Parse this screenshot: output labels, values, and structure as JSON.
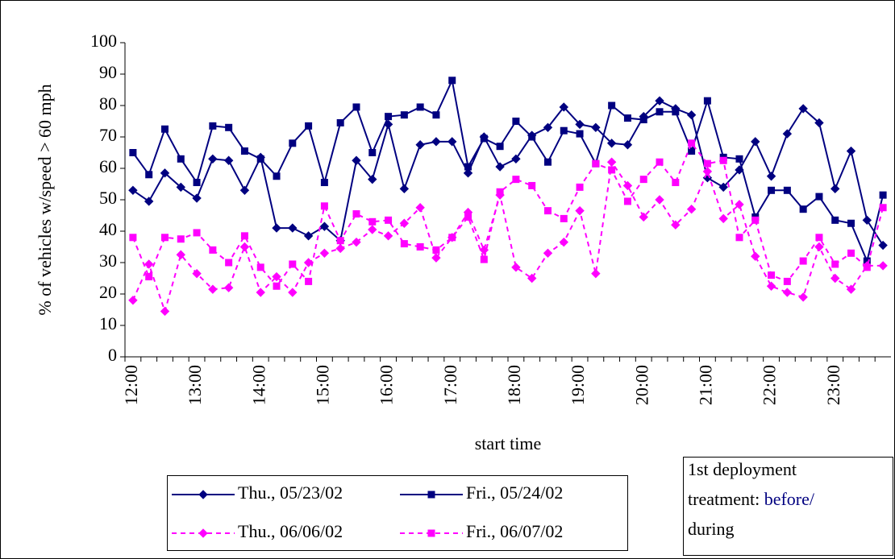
{
  "chart_data": {
    "type": "line",
    "y_label": "% of vehicles w/speed > 60 mph",
    "x_label": "start time",
    "categories": [
      "12:00",
      null,
      null,
      null,
      "13:00",
      null,
      null,
      null,
      "14:00",
      null,
      null,
      null,
      "15:00",
      null,
      null,
      null,
      "16:00",
      null,
      null,
      null,
      "17:00",
      null,
      null,
      null,
      "18:00",
      null,
      null,
      null,
      "19:00",
      null,
      null,
      null,
      "20:00",
      null,
      null,
      null,
      "21:00",
      null,
      null,
      null,
      "22:00",
      null,
      null,
      null,
      "23:00",
      null,
      null,
      null
    ],
    "ylim": [
      0,
      100
    ],
    "yticks": [
      0,
      10,
      20,
      30,
      40,
      50,
      60,
      70,
      80,
      90,
      100
    ],
    "grid": false,
    "series": [
      {
        "name": "Thu., 05/23/02",
        "color": "#000080",
        "style": "solid",
        "marker": "diamond",
        "values": [
          53,
          49.5,
          58.5,
          54,
          50.5,
          63,
          62.5,
          53,
          63.5,
          41,
          41,
          38.5,
          41.5,
          37,
          62.5,
          56.5,
          74,
          53.5,
          67.5,
          68.5,
          68.5,
          58.5,
          70,
          60.5,
          63,
          70.5,
          73,
          79.5,
          74,
          73,
          68,
          67.5,
          76.5,
          81.5,
          79,
          77,
          57,
          54,
          59.5,
          68.5,
          57.5,
          71,
          79,
          74.5,
          53.5,
          65.5,
          43.5,
          35.5
        ]
      },
      {
        "name": "Fri., 05/24/02",
        "color": "#000080",
        "style": "solid",
        "marker": "square",
        "values": [
          65,
          58,
          72.5,
          63,
          55.5,
          73.5,
          73,
          65.5,
          63,
          57.5,
          68,
          73.5,
          55.5,
          74.5,
          79.5,
          65,
          76.5,
          77,
          79.5,
          77,
          88,
          60.5,
          69.5,
          67,
          75,
          70,
          62,
          72,
          71,
          61.5,
          80,
          76,
          75.5,
          78,
          78,
          65.5,
          81.5,
          63.5,
          63,
          44.5,
          53,
          53,
          47,
          51,
          43.5,
          42.5,
          30.5,
          51.5
        ]
      },
      {
        "name": "Thu., 06/06/02",
        "color": "#ff00ff",
        "style": "dashed",
        "marker": "diamond",
        "values": [
          18,
          29.5,
          14.5,
          32.5,
          26.5,
          21.5,
          22,
          35,
          20.5,
          25.5,
          20.5,
          30,
          33,
          34.5,
          36.5,
          40.5,
          38.5,
          42.5,
          47.5,
          31.5,
          38,
          46,
          34,
          51.5,
          28.5,
          25,
          33,
          36.5,
          46.5,
          26.5,
          62,
          54.5,
          44.5,
          50,
          42,
          47,
          59,
          44,
          48.5,
          32,
          22.5,
          20.5,
          19,
          35,
          25,
          21.5,
          29,
          29
        ]
      },
      {
        "name": "Fri., 06/07/02",
        "color": "#ff00ff",
        "style": "dashed",
        "marker": "square",
        "values": [
          38,
          25.5,
          38,
          37.5,
          39.5,
          34,
          30,
          38.5,
          28.5,
          22.5,
          29.5,
          24,
          48,
          37,
          45.5,
          43,
          43.5,
          36,
          35,
          34,
          38,
          44.5,
          31,
          52.5,
          56.5,
          54.5,
          46.5,
          44,
          54,
          61.5,
          59.5,
          49.5,
          56.5,
          62,
          55.5,
          68,
          61.5,
          62.5,
          38,
          43.5,
          26,
          24,
          30.5,
          38,
          29.5,
          33,
          28.5,
          47.5
        ]
      }
    ],
    "annotation": {
      "line1": "1st deployment",
      "line2": "treatment: ",
      "before": "before/",
      "during": "during"
    }
  }
}
